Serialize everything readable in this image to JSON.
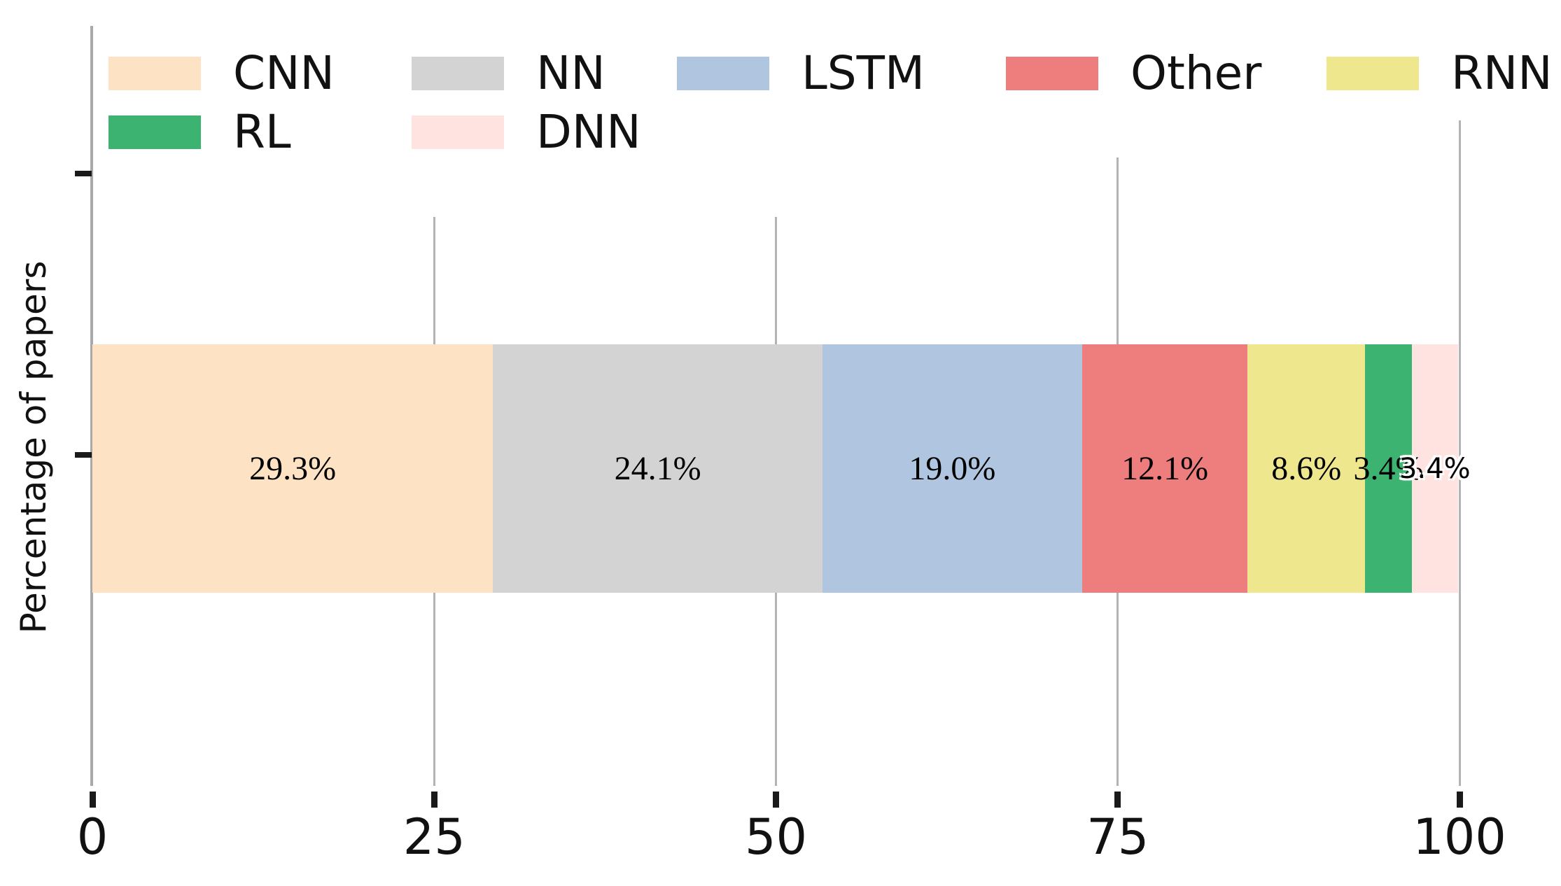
{
  "chart_data": {
    "type": "bar",
    "orientation": "horizontal",
    "stacked": true,
    "title": "",
    "xlabel": "",
    "ylabel": "Percentage of papers",
    "xlim": [
      0,
      100
    ],
    "x_ticks": [
      "0",
      "25",
      "50",
      "75",
      "100"
    ],
    "x_tick_values": [
      0,
      25,
      50,
      75,
      100
    ],
    "grid": "vertical-gridlines-gray",
    "categories": [
      "CNN",
      "NN",
      "LSTM",
      "Other",
      "RNN",
      "RL",
      "DNN"
    ],
    "values": [
      29.3,
      24.1,
      19.0,
      12.1,
      8.6,
      3.4,
      3.4
    ],
    "data_labels": [
      "29.3%",
      "24.1%",
      "19.0%",
      "12.1%",
      "8.6%",
      "3.4%",
      "3.4%"
    ],
    "colors": [
      "#fde3c3",
      "#d3d3d3",
      "#b0c6e0",
      "#ee7d7d",
      "#efe78d",
      "#3cb371",
      "#ffe3e0"
    ],
    "legend": {
      "position": "upper-left",
      "rows": [
        [
          "CNN",
          "NN",
          "LSTM",
          "Other",
          "RNN"
        ],
        [
          "RL",
          "DNN"
        ]
      ]
    }
  }
}
